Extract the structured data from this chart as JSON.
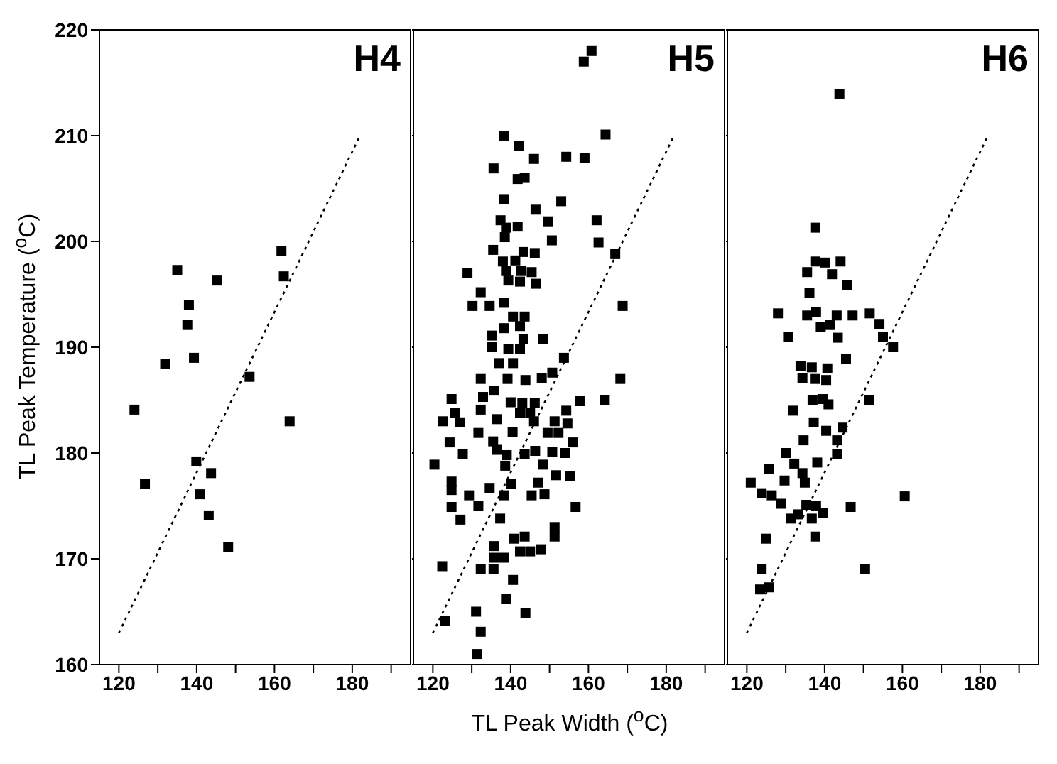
{
  "chart_data": [
    {
      "type": "scatter",
      "title": "H4",
      "ylabel": "TL Peak Temperature ($^{o}$C)",
      "xlim": [
        115,
        195
      ],
      "xticks": [
        120,
        {
          "value": 130,
          "label": null
        },
        140,
        {
          "value": 150,
          "label": null
        },
        160,
        {
          "value": 170,
          "label": null
        },
        180,
        {
          "value": 190,
          "label": null
        }
      ],
      "ylim": [
        160,
        220
      ],
      "yticks": [
        160,
        170,
        180,
        190,
        200,
        210,
        220
      ],
      "marker": "square",
      "series": [
        {
          "color": "#000000",
          "x": [
            124.0,
            126.7,
            131.9,
            135.0,
            138.0,
            137.6,
            139.3,
            139.9,
            140.9,
            143.7,
            143.1,
            148.1,
            145.3,
            153.6,
            161.8,
            162.4,
            163.9
          ],
          "values": [
            184.1,
            177.1,
            188.4,
            197.3,
            194.0,
            192.1,
            189.0,
            179.2,
            176.1,
            178.1,
            174.1,
            171.1,
            196.3,
            187.2,
            199.1,
            196.7,
            183.0
          ]
        },
        {
          "type": "line",
          "color": "#000000",
          "marker": "none",
          "line_style": "dotted",
          "x": [
            120,
            182
          ],
          "values": [
            163,
            210
          ]
        }
      ]
    },
    {
      "type": "scatter",
      "title": "H5",
      "xlabel": "TL Peak Width ($^{o}$C)",
      "xlim": [
        115,
        195
      ],
      "xticks": [
        120,
        {
          "value": 130,
          "label": null
        },
        140,
        {
          "value": 150,
          "label": null
        },
        160,
        {
          "value": 170,
          "label": null
        },
        180,
        {
          "value": 190,
          "label": null
        }
      ],
      "ylim": [
        160,
        220
      ],
      "yticks": [
        {
          "value": 160,
          "label": null
        },
        {
          "value": 170,
          "label": null
        },
        {
          "value": 180,
          "label": null
        },
        {
          "value": 190,
          "label": null
        },
        {
          "value": 200,
          "label": null
        },
        {
          "value": 210,
          "label": null
        },
        {
          "value": 220,
          "label": null
        }
      ],
      "tick_labels": "x",
      "marker": "square",
      "series": [
        {
          "color": "#000000",
          "x": [
            160.8,
            158.8,
            164.4,
            138.3,
            142.1,
            146.0,
            154.3,
            159.0,
            135.6,
            141.8,
            143.6,
            138.3,
            153.0,
            146.4,
            137.4,
            149.6,
            162.1,
            138.8,
            141.8,
            150.6,
            162.6,
            138.5,
            135.5,
            166.9,
            143.3,
            146.2,
            138.0,
            141.2,
            128.9,
            138.8,
            142.6,
            145.4,
            132.3,
            139.4,
            142.4,
            146.5,
            130.2,
            134.6,
            138.2,
            168.8,
            140.6,
            143.6,
            135.2,
            138.2,
            142.4,
            143.3,
            148.3,
            135.2,
            139.4,
            142.4,
            153.7,
            137.0,
            140.6,
            132.3,
            139.2,
            143.8,
            148.0,
            150.7,
            168.2,
            124.8,
            132.9,
            135.8,
            157.9,
            164.2,
            125.7,
            132.3,
            140.0,
            143.0,
            146.2,
            154.3,
            122.6,
            126.9,
            136.4,
            142.4,
            145.0,
            146.0,
            151.3,
            154.6,
            131.7,
            140.5,
            149.5,
            152.3,
            124.3,
            156.1,
            135.5,
            136.4,
            139.0,
            127.7,
            143.6,
            146.3,
            150.7,
            154.0,
            120.4,
            138.6,
            148.3,
            124.8,
            124.8,
            129.3,
            124.8,
            131.7,
            134.6,
            140.2,
            138.2,
            151.7,
            155.2,
            145.4,
            147.1,
            148.7,
            156.7,
            127.1,
            137.3,
            151.3,
            151.3,
            140.9,
            143.6,
            142.4,
            145.0,
            147.7,
            135.8,
            135.8,
            138.2,
            122.4,
            132.3,
            135.6,
            140.6,
            138.8,
            131.1,
            143.8,
            123.1,
            132.3,
            131.4
          ],
          "values": [
            218.0,
            217.0,
            210.1,
            210.0,
            209.0,
            207.8,
            208.0,
            207.9,
            206.9,
            205.9,
            206.0,
            204.0,
            203.8,
            203.0,
            202.0,
            201.9,
            202.0,
            201.3,
            201.4,
            200.1,
            199.9,
            200.4,
            199.2,
            198.8,
            199.0,
            198.9,
            198.1,
            198.2,
            197.0,
            197.2,
            197.2,
            197.1,
            195.2,
            196.3,
            196.2,
            196.0,
            193.9,
            193.9,
            194.2,
            193.9,
            192.9,
            192.9,
            191.1,
            191.8,
            192.0,
            190.8,
            190.8,
            190.0,
            189.8,
            189.8,
            189.0,
            188.5,
            188.5,
            187.0,
            187.0,
            186.9,
            187.1,
            187.6,
            187.0,
            185.1,
            185.3,
            185.9,
            184.9,
            185.0,
            183.8,
            184.1,
            184.8,
            184.7,
            184.7,
            184.0,
            183.0,
            182.9,
            183.2,
            183.8,
            183.8,
            183.0,
            183.0,
            182.8,
            181.9,
            182.0,
            181.9,
            181.9,
            181.0,
            181.0,
            181.1,
            180.3,
            179.8,
            179.9,
            179.9,
            180.2,
            180.1,
            180.0,
            178.9,
            178.8,
            178.9,
            177.3,
            176.5,
            176.0,
            174.9,
            175.0,
            176.7,
            177.1,
            176.0,
            177.9,
            177.8,
            176.0,
            177.2,
            176.1,
            174.9,
            173.7,
            173.8,
            173.0,
            172.1,
            171.9,
            172.1,
            170.7,
            170.7,
            170.9,
            171.2,
            170.1,
            170.1,
            169.3,
            169.0,
            169.0,
            168.0,
            166.2,
            165.0,
            164.9,
            164.1,
            163.1,
            161.0
          ]
        },
        {
          "type": "line",
          "color": "#000000",
          "marker": "none",
          "line_style": "dotted",
          "x": [
            120,
            182
          ],
          "values": [
            163,
            210
          ]
        }
      ]
    },
    {
      "type": "scatter",
      "title": "H6",
      "xlim": [
        115,
        195
      ],
      "xticks": [
        120,
        {
          "value": 130,
          "label": null
        },
        140,
        {
          "value": 150,
          "label": null
        },
        160,
        {
          "value": 170,
          "label": null
        },
        180,
        {
          "value": 190,
          "label": null
        }
      ],
      "ylim": [
        160,
        220
      ],
      "yticks": [
        {
          "value": 160,
          "label": null
        },
        {
          "value": 170,
          "label": null
        },
        {
          "value": 180,
          "label": null
        },
        {
          "value": 190,
          "label": null
        },
        {
          "value": 200,
          "label": null
        },
        {
          "value": 210,
          "label": null
        },
        {
          "value": 220,
          "label": null
        }
      ],
      "tick_labels": "x",
      "marker": "square",
      "series": [
        {
          "color": "#000000",
          "x": [
            143.8,
            137.6,
            135.5,
            137.6,
            140.2,
            141.9,
            144.1,
            145.8,
            136.1,
            128.0,
            135.5,
            137.8,
            143.1,
            147.2,
            151.6,
            139.0,
            141.3,
            143.4,
            154.1,
            130.6,
            155.0,
            157.6,
            145.5,
            133.8,
            136.7,
            140.7,
            134.3,
            137.5,
            140.4,
            136.9,
            139.6,
            141.0,
            151.4,
            131.8,
            137.2,
            140.4,
            144.6,
            134.6,
            143.2,
            130.1,
            143.2,
            132.2,
            138.1,
            125.7,
            129.7,
            134.3,
            134.9,
            121.0,
            123.8,
            126.4,
            128.7,
            135.3,
            137.8,
            139.6,
            146.7,
            160.6,
            131.4,
            133.2,
            136.7,
            137.6,
            125.0,
            123.8,
            150.4,
            123.4,
            125.7
          ],
          "values": [
            213.9,
            201.3,
            197.1,
            198.1,
            198.0,
            196.9,
            198.1,
            195.9,
            195.1,
            193.2,
            193.0,
            193.3,
            193.0,
            193.0,
            193.2,
            191.9,
            192.1,
            190.9,
            192.2,
            191.0,
            191.0,
            190.0,
            188.9,
            188.2,
            188.1,
            188.0,
            187.1,
            187.0,
            186.9,
            185.0,
            185.1,
            184.6,
            185.0,
            184.0,
            182.9,
            182.1,
            182.4,
            181.2,
            181.2,
            180.0,
            179.9,
            179.0,
            179.1,
            178.5,
            177.4,
            178.1,
            177.2,
            177.2,
            176.2,
            176.0,
            175.2,
            175.1,
            175.0,
            174.3,
            174.9,
            175.9,
            173.8,
            174.2,
            173.8,
            172.1,
            171.9,
            169.0,
            169.0,
            167.1,
            167.3
          ]
        },
        {
          "type": "line",
          "color": "#000000",
          "marker": "none",
          "line_style": "dotted",
          "x": [
            120,
            182
          ],
          "values": [
            163,
            210
          ]
        }
      ]
    }
  ]
}
